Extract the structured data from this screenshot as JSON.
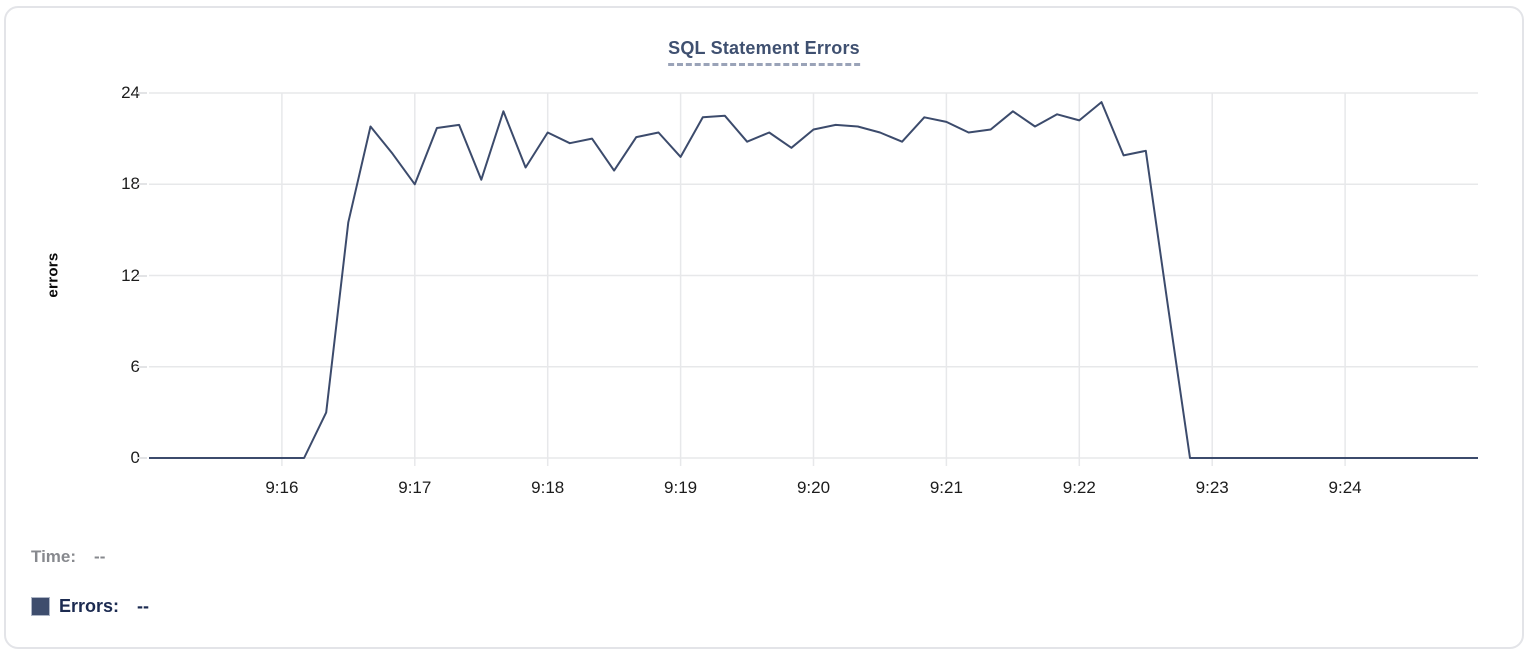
{
  "chart_data": {
    "type": "line",
    "title": "SQL Statement Errors",
    "xlabel": "",
    "ylabel": "errors",
    "ylim": [
      0,
      24
    ],
    "yticks": [
      0,
      6,
      12,
      18,
      24
    ],
    "xticks": [
      "9:16",
      "9:17",
      "9:18",
      "9:19",
      "9:20",
      "9:21",
      "9:22",
      "9:23",
      "9:24"
    ],
    "x_range": [
      "9:15:00",
      "9:25:00"
    ],
    "grid": true,
    "legend_position": "bottom-left",
    "series": [
      {
        "name": "Errors",
        "color": "#3c4b6c",
        "x": [
          "9:15:00",
          "9:15:10",
          "9:15:20",
          "9:15:30",
          "9:15:40",
          "9:15:50",
          "9:16:00",
          "9:16:10",
          "9:16:20",
          "9:16:30",
          "9:16:40",
          "9:16:50",
          "9:17:00",
          "9:17:10",
          "9:17:20",
          "9:17:30",
          "9:17:40",
          "9:17:50",
          "9:18:00",
          "9:18:10",
          "9:18:20",
          "9:18:30",
          "9:18:40",
          "9:18:50",
          "9:19:00",
          "9:19:10",
          "9:19:20",
          "9:19:30",
          "9:19:40",
          "9:19:50",
          "9:20:00",
          "9:20:10",
          "9:20:20",
          "9:20:30",
          "9:20:40",
          "9:20:50",
          "9:21:00",
          "9:21:10",
          "9:21:20",
          "9:21:30",
          "9:21:40",
          "9:21:50",
          "9:22:00",
          "9:22:10",
          "9:22:20",
          "9:22:30",
          "9:22:40",
          "9:22:50",
          "9:23:00",
          "9:23:10",
          "9:23:20",
          "9:23:30",
          "9:23:40",
          "9:23:50",
          "9:24:00",
          "9:24:10",
          "9:24:20",
          "9:24:30",
          "9:24:40",
          "9:24:50",
          "9:25:00"
        ],
        "values": [
          0,
          0,
          0,
          0,
          0,
          0,
          0,
          0,
          3,
          15.5,
          21.8,
          20,
          18,
          21.7,
          21.9,
          18.3,
          22.8,
          19.1,
          21.4,
          20.7,
          21,
          18.9,
          21.1,
          21.4,
          19.8,
          22.4,
          22.5,
          20.8,
          21.4,
          20.4,
          21.6,
          21.9,
          21.8,
          21.4,
          20.8,
          22.4,
          22.1,
          21.4,
          21.6,
          22.8,
          21.8,
          22.6,
          22.2,
          23.4,
          19.9,
          20.2,
          10,
          0,
          0,
          0,
          0,
          0,
          0,
          0,
          0,
          0,
          0,
          0,
          0,
          0,
          0
        ]
      }
    ]
  },
  "tooltip": {
    "time_label": "Time:",
    "time_value": "--",
    "errors_label": "Errors:",
    "errors_value": "--",
    "swatch_color": "#3e4d6d"
  },
  "colors": {
    "line": "#3c4b6c",
    "grid": "#e7e8ea",
    "title": "#3f5070",
    "title_underline": "#9aa3b8",
    "tick_text": "#1c1c1c",
    "time_text": "#87898e",
    "errors_text": "#1c2b51",
    "card_border": "#e3e4e8"
  }
}
